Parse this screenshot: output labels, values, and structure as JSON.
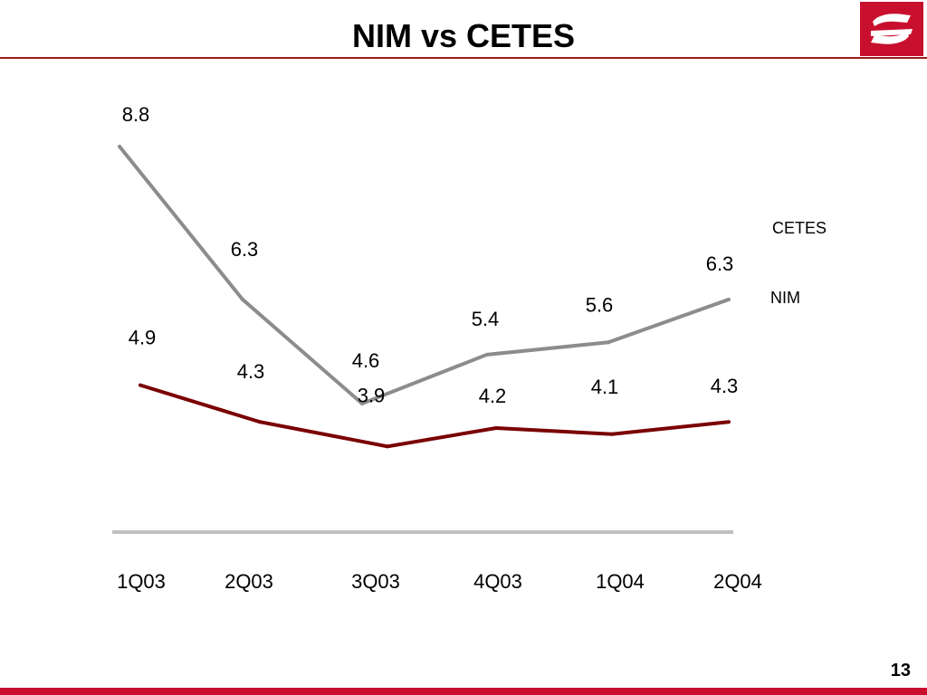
{
  "slide": {
    "title": "NIM vs CETES",
    "page_number": "13"
  },
  "colors": {
    "cetes": "#8c8c8c",
    "nim": "#7a0000",
    "baseline": "#c0c0c0",
    "brand": "#c8102e"
  },
  "icons": {
    "logo": "bank-logo-icon"
  },
  "chart_data": {
    "type": "line",
    "title": "NIM vs CETES",
    "xlabel": "",
    "ylabel": "",
    "ylim": [
      2.5,
      9.3
    ],
    "grid": false,
    "legend": "right",
    "categories": [
      "1Q03",
      "2Q03",
      "3Q03",
      "4Q03",
      "1Q04",
      "2Q04"
    ],
    "series": [
      {
        "name": "CETES",
        "values": [
          8.8,
          6.3,
          4.6,
          5.4,
          5.6,
          6.3
        ],
        "labels": [
          "8.8",
          "6.3",
          "4.6",
          "5.4",
          "5.6",
          "6.3"
        ]
      },
      {
        "name": "NIM",
        "values": [
          4.9,
          4.3,
          3.9,
          4.2,
          4.1,
          4.3
        ],
        "labels": [
          "4.9",
          "4.3",
          "3.9",
          "4.2",
          "4.1",
          "4.3"
        ]
      }
    ]
  }
}
